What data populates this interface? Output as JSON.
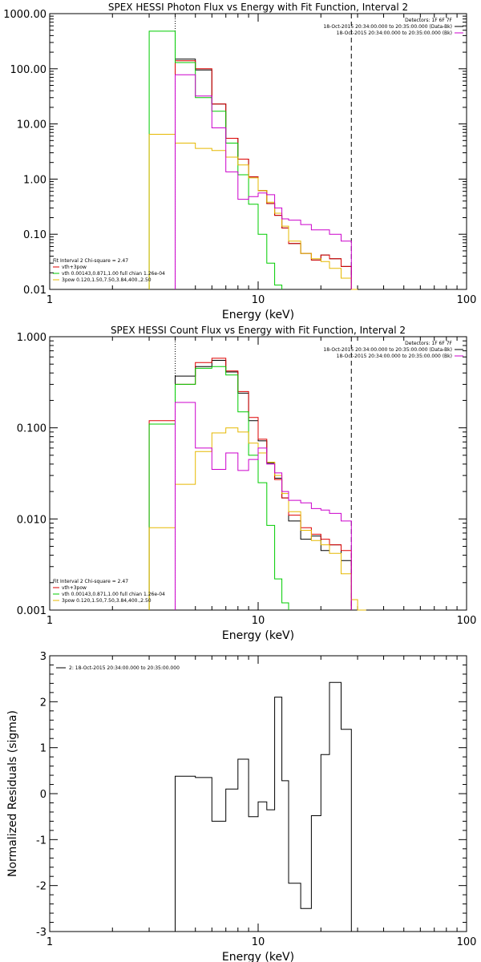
{
  "chart_data": [
    {
      "type": "line",
      "title": "SPEX HESSI Photon Flux vs Energy with Fit Function, Interval 2",
      "xlabel": "Energy (keV)",
      "ylabel": "",
      "xscale": "log",
      "yscale": "log",
      "xlim": [
        1,
        100
      ],
      "ylim": [
        0.01,
        1000
      ],
      "xticks": [
        {
          "value": 1,
          "label": "1"
        },
        {
          "value": 10,
          "label": "10"
        },
        {
          "value": 100,
          "label": "100"
        }
      ],
      "yticks": [
        {
          "value": 1000,
          "label": "1000.00"
        },
        {
          "value": 100,
          "label": "100.00"
        },
        {
          "value": 10,
          "label": "10.00"
        },
        {
          "value": 1,
          "label": "1.00"
        },
        {
          "value": 0.1,
          "label": "0.10"
        },
        {
          "value": 0.01,
          "label": "0.01"
        }
      ],
      "vlines": [
        {
          "x": 4.0,
          "style": "dotted",
          "color": "#000000"
        },
        {
          "x": 28.0,
          "style": "dashed",
          "color": "#000000"
        }
      ],
      "legend_top_right": [
        {
          "text": "Detectors: 1F 6F 7F",
          "color": ""
        },
        {
          "text": "18-Oct-2015 20:34:00.000 to 20:35:00.000 (Data-Bk)",
          "color": "#000000"
        },
        {
          "text": "18-Oct-2015 20:34:00.000 to 20:35:00.000 (Bk)",
          "color": "#cc00cc"
        }
      ],
      "legend_bottom_left": [
        {
          "text": "Fit Interval 2   Chi-square = 2.47",
          "color": ""
        },
        {
          "text": "vth+3pow",
          "color": "#dd0000"
        },
        {
          "text": "vth 0.00143,0.871,1.00  full chian 1.26e-04",
          "color": "#00cc00"
        },
        {
          "text": "3pow 0.120,1.50,7.50,3.84,400.,2.50",
          "color": "#e6b800"
        }
      ],
      "series": [
        {
          "color": "#000000",
          "edges": [
            4,
            5,
            6,
            7,
            8,
            9,
            10,
            11,
            12,
            13,
            14,
            16,
            18,
            20,
            22,
            25,
            28
          ],
          "values": [
            150,
            95,
            23,
            5.5,
            2.3,
            1.1,
            0.62,
            0.36,
            0.22,
            0.13,
            0.068,
            0.045,
            0.034,
            0.042,
            0.036,
            0.026
          ]
        },
        {
          "color": "#dd0000",
          "edges": [
            4,
            5,
            6,
            7,
            8,
            9,
            10,
            11,
            12,
            13,
            14,
            16,
            18,
            20,
            22,
            25,
            28
          ],
          "values": [
            140,
            100,
            23,
            5.5,
            2.3,
            1.1,
            0.62,
            0.36,
            0.22,
            0.13,
            0.068,
            0.045,
            0.034,
            0.042,
            0.036,
            0.026
          ]
        },
        {
          "color": "#00cc00",
          "edges": [
            3,
            4,
            5,
            6,
            7,
            8,
            9,
            10,
            11,
            12,
            13
          ],
          "values": [
            480,
            130,
            30,
            17,
            4.5,
            1.2,
            0.35,
            0.1,
            0.03,
            0.012
          ]
        },
        {
          "color": "#e6b800",
          "edges": [
            3,
            4,
            5,
            6,
            7,
            8,
            9,
            10,
            11,
            12,
            13,
            14,
            16,
            18,
            20,
            22,
            25,
            28,
            30
          ],
          "values": [
            6.5,
            4.5,
            3.6,
            3.3,
            2.5,
            1.8,
            1.05,
            0.62,
            0.38,
            0.24,
            0.14,
            0.075,
            0.045,
            0.036,
            0.032,
            0.024,
            0.016,
            0.01
          ]
        },
        {
          "color": "#cc00cc",
          "edges": [
            4,
            5,
            6,
            7,
            8,
            9,
            10,
            11,
            12,
            13,
            14,
            16,
            18,
            20,
            22,
            25,
            28
          ],
          "values": [
            78,
            32,
            8.5,
            1.35,
            0.43,
            0.48,
            0.56,
            0.52,
            0.3,
            0.19,
            0.18,
            0.15,
            0.12,
            0.12,
            0.1,
            0.075
          ]
        }
      ]
    },
    {
      "type": "line",
      "title": "SPEX HESSI Count Flux vs Energy with Fit Function, Interval 2",
      "xlabel": "Energy (keV)",
      "ylabel": "",
      "xscale": "log",
      "yscale": "log",
      "xlim": [
        1,
        100
      ],
      "ylim": [
        0.001,
        1
      ],
      "xticks": [
        {
          "value": 1,
          "label": "1"
        },
        {
          "value": 10,
          "label": "10"
        },
        {
          "value": 100,
          "label": "100"
        }
      ],
      "yticks": [
        {
          "value": 1,
          "label": "1.000"
        },
        {
          "value": 0.1,
          "label": "0.100"
        },
        {
          "value": 0.01,
          "label": "0.010"
        },
        {
          "value": 0.001,
          "label": "0.001"
        }
      ],
      "vlines": [
        {
          "x": 4.0,
          "style": "dotted",
          "color": "#000000"
        },
        {
          "x": 28.0,
          "style": "dashed",
          "color": "#000000"
        }
      ],
      "legend_top_right": [
        {
          "text": "Detectors: 1F 6F 7F",
          "color": ""
        },
        {
          "text": "18-Oct-2015 20:34:00.000 to 20:35:00.000 (Data-Bk)",
          "color": "#000000"
        },
        {
          "text": "18-Oct-2015 20:34:00.000 to 20:35:00.000 (Bk)",
          "color": "#cc00cc"
        }
      ],
      "legend_bottom_left": [
        {
          "text": "Fit Interval 2   Chi-square = 2.47",
          "color": ""
        },
        {
          "text": "vth+3pow",
          "color": "#dd0000"
        },
        {
          "text": "vth 0.00143,0.871,1.00  full chian 1.26e-04",
          "color": "#00cc00"
        },
        {
          "text": "3pow 0.120,1.50,7.50,3.84,400.,2.50",
          "color": "#e6b800"
        }
      ],
      "series": [
        {
          "color": "#000000",
          "edges": [
            4,
            5,
            6,
            7,
            8,
            9,
            10,
            11,
            12,
            13,
            14,
            16,
            18,
            20,
            22,
            25,
            28
          ],
          "values": [
            0.37,
            0.47,
            0.55,
            0.41,
            0.24,
            0.12,
            0.072,
            0.041,
            0.028,
            0.017,
            0.0095,
            0.006,
            0.0065,
            0.0045,
            0.0052,
            0.0035
          ]
        },
        {
          "color": "#dd0000",
          "edges": [
            3,
            4,
            5,
            6,
            7,
            8,
            9,
            10,
            11,
            12,
            13,
            14,
            16,
            18,
            20,
            22,
            25,
            28
          ],
          "values": [
            0.12,
            0.3,
            0.52,
            0.58,
            0.42,
            0.25,
            0.13,
            0.075,
            0.042,
            0.027,
            0.017,
            0.011,
            0.008,
            0.0068,
            0.006,
            0.0052,
            0.0045
          ]
        },
        {
          "color": "#00cc00",
          "edges": [
            3,
            4,
            5,
            6,
            7,
            8,
            9,
            10,
            11,
            12,
            13,
            14
          ],
          "values": [
            0.11,
            0.3,
            0.45,
            0.47,
            0.38,
            0.15,
            0.05,
            0.025,
            0.0085,
            0.0022,
            0.0012
          ]
        },
        {
          "color": "#e6b800",
          "edges": [
            3,
            4,
            5,
            6,
            7,
            8,
            9,
            10,
            11,
            12,
            13,
            14,
            16,
            18,
            20,
            22,
            25,
            28,
            30,
            33
          ],
          "values": [
            0.008,
            0.024,
            0.055,
            0.088,
            0.1,
            0.09,
            0.068,
            0.053,
            0.042,
            0.03,
            0.019,
            0.012,
            0.0075,
            0.0058,
            0.0052,
            0.0042,
            0.0025,
            0.0013,
            0.001
          ]
        },
        {
          "color": "#cc00cc",
          "edges": [
            4,
            5,
            6,
            7,
            8,
            9,
            10,
            11,
            12,
            13,
            14,
            16,
            18,
            20,
            22,
            25,
            28
          ],
          "values": [
            0.19,
            0.06,
            0.035,
            0.053,
            0.034,
            0.045,
            0.06,
            0.04,
            0.032,
            0.02,
            0.016,
            0.015,
            0.013,
            0.0125,
            0.0115,
            0.0095
          ]
        }
      ]
    },
    {
      "type": "line",
      "title": "",
      "xlabel": "Energy (keV)",
      "ylabel": "Normalized Residuals (sigma)",
      "xscale": "log",
      "yscale": "linear",
      "xlim": [
        1,
        100
      ],
      "ylim": [
        -3,
        3
      ],
      "xticks": [
        {
          "value": 1,
          "label": "1"
        },
        {
          "value": 10,
          "label": "10"
        },
        {
          "value": 100,
          "label": "100"
        }
      ],
      "yticks": [
        {
          "value": 3,
          "label": "3"
        },
        {
          "value": 2,
          "label": "2"
        },
        {
          "value": 1,
          "label": "1"
        },
        {
          "value": 0,
          "label": "0"
        },
        {
          "value": -1,
          "label": "-1"
        },
        {
          "value": -2,
          "label": "-2"
        },
        {
          "value": -3,
          "label": "-3"
        }
      ],
      "vlines": [],
      "legend_top_left": [
        {
          "text": "2: 18-Oct-2015 20:34:00.000 to 20:35:00.000",
          "color": "#000000"
        }
      ],
      "series": [
        {
          "color": "#000000",
          "edges": [
            4,
            5,
            6,
            7,
            8,
            9,
            10,
            11,
            12,
            13,
            14,
            16,
            18,
            20,
            22,
            25,
            28
          ],
          "values": [
            0.38,
            0.35,
            -0.6,
            0.1,
            0.75,
            -0.5,
            -0.18,
            -0.35,
            2.1,
            0.28,
            -1.95,
            -2.5,
            -0.48,
            0.85,
            2.42,
            1.4
          ],
          "drop_to": -3.15
        }
      ]
    }
  ]
}
